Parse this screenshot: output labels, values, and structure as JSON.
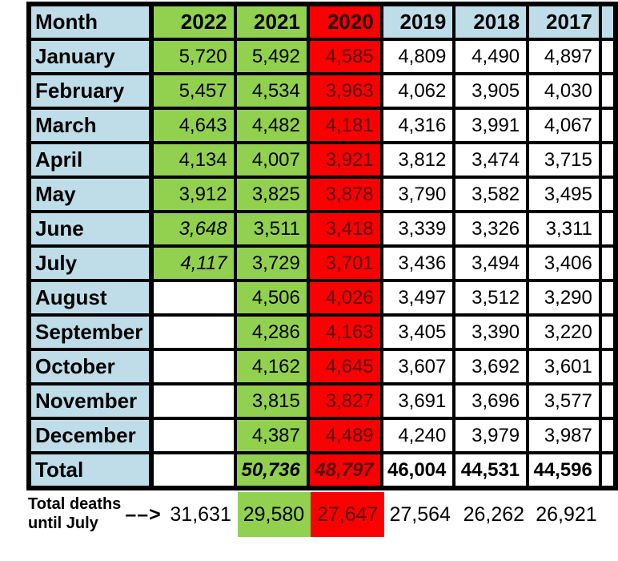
{
  "colors": {
    "green": "#92d050",
    "red": "#fa0000",
    "light_blue": "#bedde9",
    "red_cell_text": "#5a0e0e"
  },
  "table": {
    "columns": [
      {
        "label": "Month",
        "bg": "blue"
      },
      {
        "label": "2022",
        "bg": "green"
      },
      {
        "label": "2021",
        "bg": "green"
      },
      {
        "label": "2020",
        "bg": "red"
      },
      {
        "label": "2019",
        "bg": "blue"
      },
      {
        "label": "2018",
        "bg": "blue"
      },
      {
        "label": "2017",
        "bg": "blue"
      }
    ],
    "rows": [
      {
        "label": "January",
        "cells": [
          {
            "v": "5,720",
            "bg": "green"
          },
          {
            "v": "5,492",
            "bg": "green"
          },
          {
            "v": "4,585",
            "bg": "red"
          },
          {
            "v": "4,809",
            "bg": "white"
          },
          {
            "v": "4,490",
            "bg": "white"
          },
          {
            "v": "4,897",
            "bg": "white"
          }
        ]
      },
      {
        "label": "February",
        "cells": [
          {
            "v": "5,457",
            "bg": "green"
          },
          {
            "v": "4,534",
            "bg": "green"
          },
          {
            "v": "3,963",
            "bg": "red"
          },
          {
            "v": "4,062",
            "bg": "white"
          },
          {
            "v": "3,905",
            "bg": "white"
          },
          {
            "v": "4,030",
            "bg": "white"
          }
        ]
      },
      {
        "label": "March",
        "cells": [
          {
            "v": "4,643",
            "bg": "green"
          },
          {
            "v": "4,482",
            "bg": "green"
          },
          {
            "v": "4,181",
            "bg": "red"
          },
          {
            "v": "4,316",
            "bg": "white"
          },
          {
            "v": "3,991",
            "bg": "white"
          },
          {
            "v": "4,067",
            "bg": "white"
          }
        ]
      },
      {
        "label": "April",
        "cells": [
          {
            "v": "4,134",
            "bg": "green"
          },
          {
            "v": "4,007",
            "bg": "green"
          },
          {
            "v": "3,921",
            "bg": "red"
          },
          {
            "v": "3,812",
            "bg": "white"
          },
          {
            "v": "3,474",
            "bg": "white"
          },
          {
            "v": "3,715",
            "bg": "white"
          }
        ]
      },
      {
        "label": "May",
        "cells": [
          {
            "v": "3,912",
            "bg": "green"
          },
          {
            "v": "3,825",
            "bg": "green"
          },
          {
            "v": "3,878",
            "bg": "red"
          },
          {
            "v": "3,790",
            "bg": "white"
          },
          {
            "v": "3,582",
            "bg": "white"
          },
          {
            "v": "3,495",
            "bg": "white"
          }
        ]
      },
      {
        "label": "June",
        "cells": [
          {
            "v": "3,648",
            "bg": "green",
            "it": true
          },
          {
            "v": "3,511",
            "bg": "green"
          },
          {
            "v": "3,418",
            "bg": "red"
          },
          {
            "v": "3,339",
            "bg": "white"
          },
          {
            "v": "3,326",
            "bg": "white"
          },
          {
            "v": "3,311",
            "bg": "white"
          }
        ]
      },
      {
        "label": "July",
        "cells": [
          {
            "v": "4,117",
            "bg": "green",
            "it": true
          },
          {
            "v": "3,729",
            "bg": "green"
          },
          {
            "v": "3,701",
            "bg": "red"
          },
          {
            "v": "3,436",
            "bg": "white"
          },
          {
            "v": "3,494",
            "bg": "white"
          },
          {
            "v": "3,406",
            "bg": "white"
          }
        ]
      },
      {
        "label": "August",
        "cells": [
          {
            "v": "",
            "bg": "white"
          },
          {
            "v": "4,506",
            "bg": "green"
          },
          {
            "v": "4,026",
            "bg": "red"
          },
          {
            "v": "3,497",
            "bg": "white"
          },
          {
            "v": "3,512",
            "bg": "white"
          },
          {
            "v": "3,290",
            "bg": "white"
          }
        ]
      },
      {
        "label": "September",
        "cells": [
          {
            "v": "",
            "bg": "white"
          },
          {
            "v": "4,286",
            "bg": "green"
          },
          {
            "v": "4,163",
            "bg": "red"
          },
          {
            "v": "3,405",
            "bg": "white"
          },
          {
            "v": "3,390",
            "bg": "white"
          },
          {
            "v": "3,220",
            "bg": "white"
          }
        ]
      },
      {
        "label": "October",
        "cells": [
          {
            "v": "",
            "bg": "white"
          },
          {
            "v": "4,162",
            "bg": "green"
          },
          {
            "v": "4,645",
            "bg": "red"
          },
          {
            "v": "3,607",
            "bg": "white"
          },
          {
            "v": "3,692",
            "bg": "white"
          },
          {
            "v": "3,601",
            "bg": "white"
          }
        ]
      },
      {
        "label": "November",
        "cells": [
          {
            "v": "",
            "bg": "white"
          },
          {
            "v": "3,815",
            "bg": "green"
          },
          {
            "v": "3,827",
            "bg": "red"
          },
          {
            "v": "3,691",
            "bg": "white"
          },
          {
            "v": "3,696",
            "bg": "white"
          },
          {
            "v": "3,577",
            "bg": "white"
          }
        ]
      },
      {
        "label": "December",
        "cells": [
          {
            "v": "",
            "bg": "white"
          },
          {
            "v": "4,387",
            "bg": "green"
          },
          {
            "v": "4,489",
            "bg": "red"
          },
          {
            "v": "4,240",
            "bg": "white"
          },
          {
            "v": "3,979",
            "bg": "white"
          },
          {
            "v": "3,987",
            "bg": "white"
          }
        ]
      },
      {
        "label": "Total",
        "cells": [
          {
            "v": "",
            "bg": "white"
          },
          {
            "v": "50,736",
            "bg": "green",
            "b": true,
            "it": true
          },
          {
            "v": "48,797",
            "bg": "red",
            "b": true,
            "it": true
          },
          {
            "v": "46,004",
            "bg": "white",
            "b": true
          },
          {
            "v": "44,531",
            "bg": "white",
            "b": true
          },
          {
            "v": "44,596",
            "bg": "white",
            "b": true
          }
        ]
      }
    ]
  },
  "footer": {
    "label_line1": "Total deaths",
    "label_line2": "until July",
    "arrow": "––>",
    "values": [
      "31,631",
      "29,580",
      "27,647",
      "27,564",
      "26,262",
      "26,921"
    ]
  },
  "chart_data": {
    "type": "table",
    "title": "Monthly deaths by year",
    "columns": [
      "Month",
      "2022",
      "2021",
      "2020",
      "2019",
      "2018",
      "2017"
    ],
    "rows": [
      [
        "January",
        5720,
        5492,
        4585,
        4809,
        4490,
        4897
      ],
      [
        "February",
        5457,
        4534,
        3963,
        4062,
        3905,
        4030
      ],
      [
        "March",
        4643,
        4482,
        4181,
        4316,
        3991,
        4067
      ],
      [
        "April",
        4134,
        4007,
        3921,
        3812,
        3474,
        3715
      ],
      [
        "May",
        3912,
        3825,
        3878,
        3790,
        3582,
        3495
      ],
      [
        "June",
        3648,
        3511,
        3418,
        3339,
        3326,
        3311
      ],
      [
        "July",
        4117,
        3729,
        3701,
        3436,
        3494,
        3406
      ],
      [
        "August",
        null,
        4506,
        4026,
        3497,
        3512,
        3290
      ],
      [
        "September",
        null,
        4286,
        4163,
        3405,
        3390,
        3220
      ],
      [
        "October",
        null,
        4162,
        4645,
        3607,
        3692,
        3601
      ],
      [
        "November",
        null,
        3815,
        3827,
        3691,
        3696,
        3577
      ],
      [
        "December",
        null,
        4387,
        4489,
        4240,
        3979,
        3987
      ],
      [
        "Total",
        null,
        50736,
        48797,
        46004,
        44531,
        44596
      ],
      [
        "Total deaths until July",
        31631,
        29580,
        27647,
        27564,
        26262,
        26921
      ]
    ]
  }
}
